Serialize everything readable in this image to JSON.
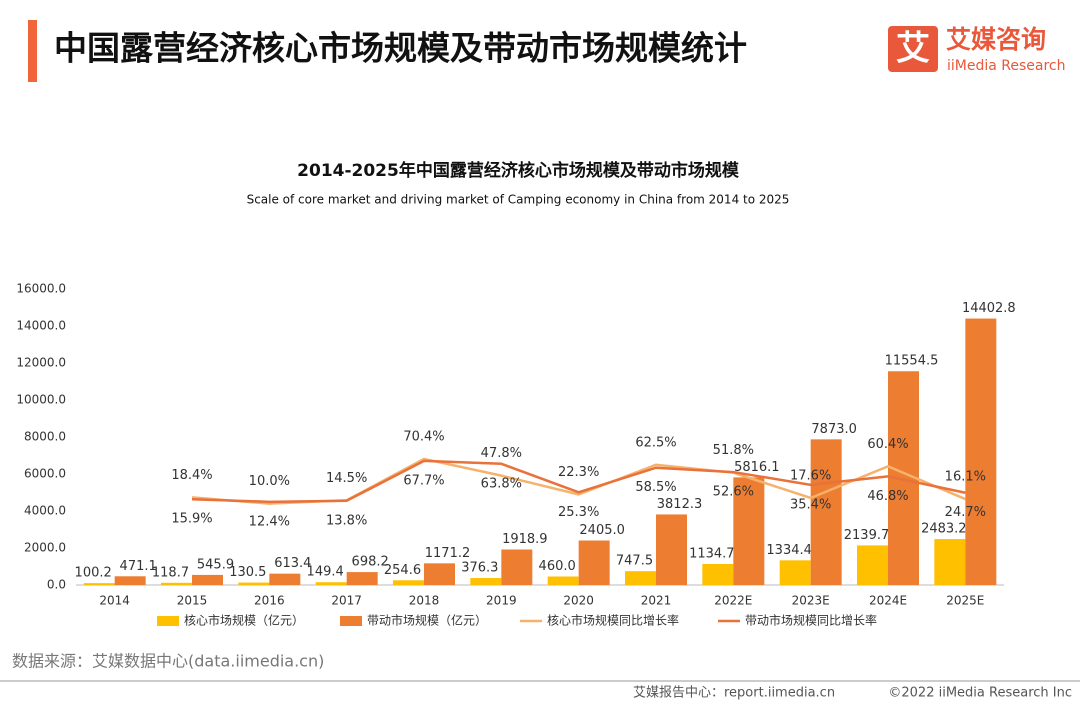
{
  "header": {
    "title": "中国露营经济核心市场规模及带动市场规模统计",
    "logo_mark": "艾",
    "logo_name": "艾媒咨询",
    "logo_sub": "iiMedia Research"
  },
  "chart_data": {
    "type": "bar-line",
    "title": "2014-2025年中国露营经济核心市场规模及带动市场规模",
    "subtitle": "Scale of core market and driving market of Camping economy in China from 2014 to 2025",
    "categories": [
      "2014",
      "2015",
      "2016",
      "2017",
      "2018",
      "2019",
      "2020",
      "2021",
      "2022E",
      "2023E",
      "2024E",
      "2025E"
    ],
    "ylim": [
      0,
      16000
    ],
    "yticks": [
      {
        "value": 0,
        "label": "0.0"
      },
      {
        "value": 2000,
        "label": "2000.0"
      },
      {
        "value": 4000,
        "label": "4000.0"
      },
      {
        "value": 6000,
        "label": "6000.0"
      },
      {
        "value": 8000,
        "label": "8000.0"
      },
      {
        "value": 10000,
        "label": "10000.0"
      },
      {
        "value": 12000,
        "label": "12000.0"
      },
      {
        "value": 14000,
        "label": "14000.0"
      },
      {
        "value": 16000,
        "label": "16000.0"
      }
    ],
    "y2lim": [
      -100,
      300
    ],
    "series": [
      {
        "name": "核心市场规模（亿元）",
        "type": "bar",
        "color": "#ffc000",
        "values": [
          100.2,
          118.7,
          130.5,
          149.4,
          254.6,
          376.3,
          460.0,
          747.5,
          1134.7,
          1334.4,
          2139.7,
          2483.2
        ],
        "value_labels": [
          "100.2",
          "118.7",
          "130.5",
          "149.4",
          "254.6",
          "376.3",
          "460.0",
          "747.5",
          "1134.7",
          "1334.4",
          "2139.7",
          "2483.2"
        ]
      },
      {
        "name": "带动市场规模（亿元）",
        "type": "bar",
        "color": "#ed7d31",
        "values": [
          471.1,
          545.9,
          613.4,
          698.2,
          1171.2,
          1918.9,
          2405.0,
          3812.3,
          5816.1,
          7873.0,
          11554.5,
          14402.8
        ],
        "value_labels": [
          "471.1",
          "545.9",
          "613.4",
          "698.2",
          "1171.2",
          "1918.9",
          "2405.0",
          "3812.3",
          "5816.1",
          "7873.0",
          "11554.5",
          "14402.8"
        ]
      },
      {
        "name": "核心市场规模同比增长率",
        "type": "line",
        "axis": "y2",
        "color": "#f5b26b",
        "values": [
          null,
          18.4,
          10.0,
          14.5,
          70.4,
          47.8,
          22.3,
          62.5,
          51.8,
          17.6,
          60.4,
          16.1
        ],
        "value_labels": [
          null,
          "18.4%",
          "10.0%",
          "14.5%",
          "70.4%",
          "47.8%",
          "22.3%",
          "62.5%",
          "51.8%",
          "17.6%",
          "60.4%",
          "16.1%"
        ]
      },
      {
        "name": "带动市场规模同比增长率",
        "type": "line",
        "axis": "y2",
        "color": "#e9713a",
        "values": [
          null,
          15.9,
          12.4,
          13.8,
          67.7,
          63.8,
          25.3,
          58.5,
          52.6,
          35.4,
          46.8,
          24.7
        ],
        "value_labels": [
          null,
          "15.9%",
          "12.4%",
          "13.8%",
          "67.7%",
          "63.8%",
          "25.3%",
          "58.5%",
          "52.6%",
          "35.4%",
          "46.8%",
          "24.7%"
        ]
      }
    ]
  },
  "source": "数据来源：艾媒数据中心(data.iimedia.cn)",
  "footer": {
    "report": "艾媒报告中心：report.iimedia.cn",
    "copyright": "©2022  iiMedia Research  Inc"
  }
}
